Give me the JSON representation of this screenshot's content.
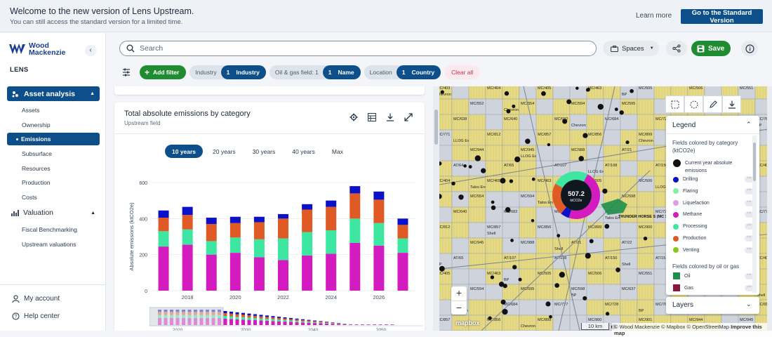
{
  "banner": {
    "title": "Welcome to the new version of Lens Upstream.",
    "subtitle": "You can still access the standard version for a limited time.",
    "learn_more": "Learn more",
    "standard_button": "Go to the Standard Version"
  },
  "sidebar": {
    "logo_line1": "Wood",
    "logo_line2": "Mackenzie",
    "collapse_icon": "chevron-left",
    "lens_label": "LENS",
    "group_asset": "Asset analysis",
    "asset_items": [
      "Assets",
      "Ownership",
      "Emissions",
      "Subsurface",
      "Resources",
      "Production",
      "Costs"
    ],
    "active_item": "Emissions",
    "group_valuation": "Valuation",
    "valuation_items": [
      "Fiscal Benchmarking",
      "Upstream valuations"
    ],
    "my_account": "My account",
    "help_center": "Help center"
  },
  "topbar": {
    "search_placeholder": "Search",
    "spaces": "Spaces",
    "save": "Save"
  },
  "filters": {
    "add_filter": "Add filter",
    "chips": [
      {
        "label": "Industry",
        "count": "1",
        "value": "Industry"
      },
      {
        "label": "Oil & gas field: 1",
        "count": "1",
        "value": "Name"
      },
      {
        "label": "Location",
        "count": "1",
        "value": "Country"
      }
    ],
    "clear_all": "Clear all"
  },
  "card": {
    "title": "Total absolute emissions by category",
    "subtitle": "Upstream field",
    "tabs": [
      "10 years",
      "20 years",
      "30 years",
      "40 years",
      "Max"
    ],
    "active_tab": "10 years"
  },
  "chart_data": {
    "type": "bar",
    "stacked": true,
    "ylabel": "Absolute emissions (ktCO2e)",
    "ylim": [
      0,
      600
    ],
    "yticks": [
      "0",
      "200",
      "400",
      "600"
    ],
    "xticks": [
      "2018",
      "2020",
      "2022",
      "2024",
      "2026"
    ],
    "categories": [
      "2017",
      "2018",
      "2019",
      "2020",
      "2021",
      "2022",
      "2023",
      "2024",
      "2025",
      "2026",
      "2027"
    ],
    "series": [
      {
        "name": "Methane",
        "color": "#d41bbf",
        "values": [
          245,
          255,
          200,
          210,
          185,
          170,
          195,
          205,
          265,
          250,
          210
        ]
      },
      {
        "name": "Processing",
        "color": "#3ee7a1",
        "values": [
          85,
          85,
          75,
          85,
          100,
          120,
          130,
          130,
          135,
          125,
          80
        ]
      },
      {
        "name": "Production",
        "color": "#e05a25",
        "values": [
          75,
          80,
          95,
          80,
          95,
          110,
          125,
          130,
          140,
          130,
          75
        ]
      },
      {
        "name": "Drilling",
        "color": "#0b10c9",
        "values": [
          40,
          45,
          35,
          35,
          30,
          25,
          30,
          35,
          40,
          45,
          35
        ]
      }
    ],
    "minimap_xticks": [
      "2020",
      "2030",
      "2040",
      "2050"
    ]
  },
  "map": {
    "total_value": "507.2",
    "total_unit": "ktCO2e",
    "field_label": "THUNDER HORSE S (MC 778)",
    "block_labels": [
      "MC/403",
      "MC/404",
      "MC/405",
      "MC/463",
      "MC/505",
      "MC/506",
      "MC/551",
      "MC/552",
      "MC/554",
      "MC/594",
      "MC/595",
      "MC/598",
      "MC/637",
      "MC/638",
      "MC/640",
      "MC/682",
      "MC/684",
      "MC/727",
      "MC/728",
      "MC/769",
      "MC/771",
      "MC/812",
      "MC/857",
      "MC/856",
      "MC/899",
      "MC/900",
      "MC/901",
      "MC/944",
      "MC/945",
      "MC/988",
      "AT/21",
      "AT/22",
      "AT/23",
      "AT/64",
      "AT/65",
      "AT/107",
      "AT/108",
      "AT/150",
      "AT/151"
    ],
    "operators": [
      "Chevron",
      "BP",
      "Shell",
      "Talos Energy",
      "LLOG Exploration"
    ],
    "scale": "10 km",
    "attribution": "© Wood Mackenzie © Mapbox © OpenStreetMap",
    "improve": "Improve this map",
    "mapbox_logo": "mapbox"
  },
  "legend": {
    "title": "Legend",
    "group1": "Fields colored by category (ktCO2e)",
    "current_year": "Current year absolute emissions",
    "items": [
      {
        "label": "Drilling",
        "color": "#0b10c9"
      },
      {
        "label": "Flaring",
        "color": "#7ef0a8"
      },
      {
        "label": "Liquefaction",
        "color": "#d99ee6"
      },
      {
        "label": "Methane",
        "color": "#d41bbf"
      },
      {
        "label": "Processing",
        "color": "#3ee7a1"
      },
      {
        "label": "Production",
        "color": "#e05a25"
      },
      {
        "label": "Venting",
        "color": "#83c920"
      }
    ],
    "group2": "Fields colored by oil or gas",
    "fluid_items": [
      {
        "label": "Oil",
        "color": "#1e8f4a"
      },
      {
        "label": "Gas",
        "color": "#8b1440"
      }
    ],
    "layers": "Layers"
  }
}
